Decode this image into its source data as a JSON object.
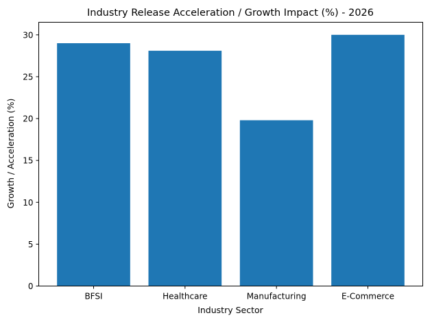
{
  "chart_data": {
    "type": "bar",
    "title": "Industry Release Acceleration / Growth Impact (%) - 2026",
    "xlabel": "Industry Sector",
    "ylabel": "Growth / Acceleration (%)",
    "categories": [
      "BFSI",
      "Healthcare",
      "Manufacturing",
      "E-Commerce"
    ],
    "values": [
      29.0,
      28.1,
      19.8,
      30.0
    ],
    "ylim": [
      0,
      31.5
    ],
    "yticks": [
      0,
      5,
      10,
      15,
      20,
      25,
      30
    ],
    "grid": false,
    "bar_color": "#1f77b4"
  }
}
